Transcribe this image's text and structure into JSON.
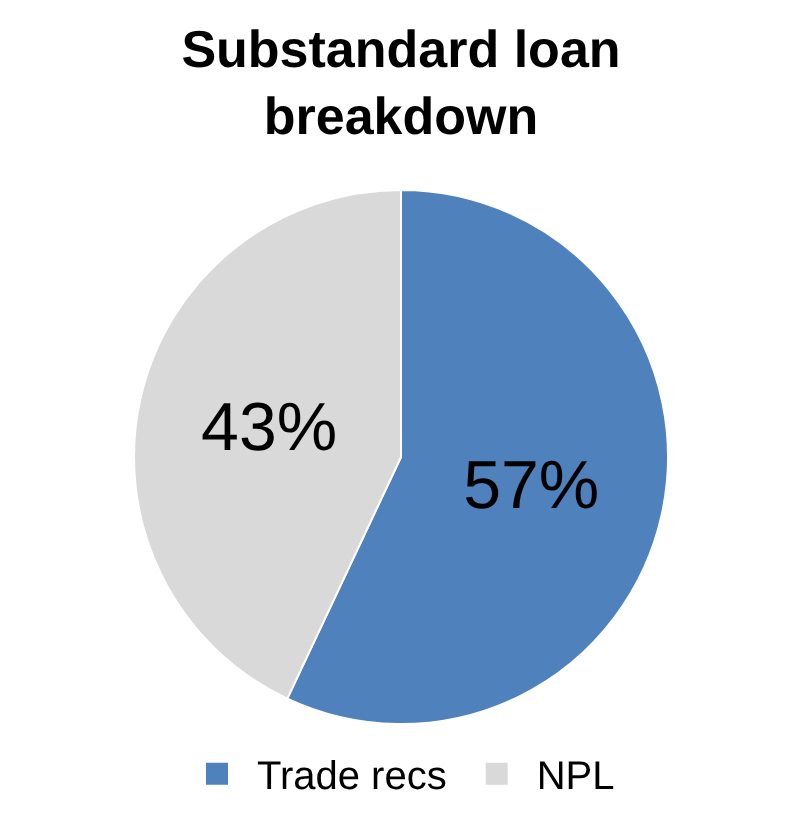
{
  "chart_data": {
    "type": "pie",
    "title": "Substandard loan breakdown",
    "categories": [
      "Trade recs",
      "NPL"
    ],
    "values": [
      57,
      43
    ],
    "value_labels": [
      "57%",
      "43%"
    ],
    "colors": [
      "#4f81bd",
      "#d9d9d9"
    ],
    "legend": "bottom"
  }
}
